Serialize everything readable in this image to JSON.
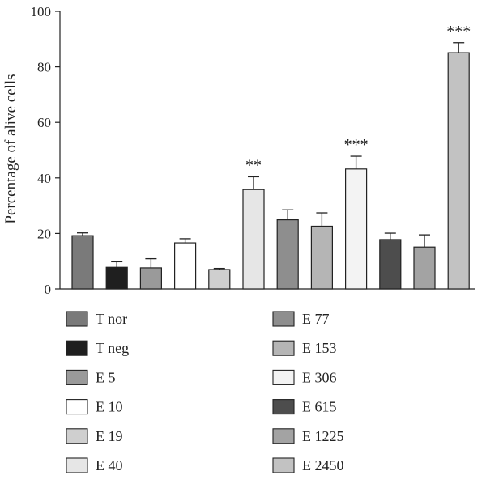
{
  "chart_data": {
    "type": "bar",
    "ylabel": "Percentage of alive cells",
    "ylim": [
      0,
      100
    ],
    "yticks": [
      0,
      20,
      40,
      60,
      80,
      100
    ],
    "grid": false,
    "legend_placement": "bottom",
    "categories": [
      "T nor",
      "T neg",
      "E 5",
      "E 10",
      "E 19",
      "E 40",
      "E 77",
      "E 153",
      "E 306",
      "E 615",
      "E 1225",
      "E 2450"
    ],
    "values": [
      19.2,
      7.8,
      7.6,
      16.6,
      7.0,
      35.8,
      24.9,
      22.6,
      43.2,
      17.8,
      15.1,
      85.1
    ],
    "errors": [
      1.0,
      2.0,
      3.3,
      1.5,
      0.4,
      4.6,
      3.6,
      4.8,
      4.6,
      2.3,
      4.4,
      3.6
    ],
    "significance": [
      "",
      "",
      "",
      "",
      "",
      "**",
      "",
      "",
      "***",
      "",
      "",
      "***"
    ],
    "colors": [
      "#7a7a7a",
      "#1f1f1f",
      "#9a9a9a",
      "#ffffff",
      "#cfcfcf",
      "#e6e6e6",
      "#8e8e8e",
      "#b5b5b5",
      "#f3f3f3",
      "#4d4d4d",
      "#a3a3a3",
      "#c2c2c2"
    ]
  }
}
